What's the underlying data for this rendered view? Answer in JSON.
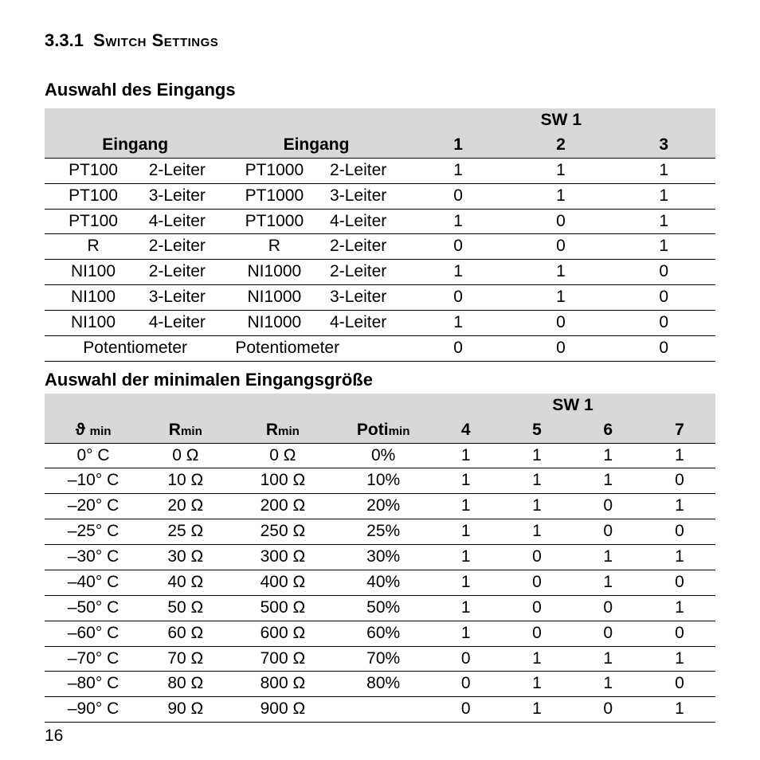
{
  "section_number": "3.3.1",
  "section_title": "Switch Settings",
  "subheading1": "Auswahl des Eingangs",
  "subheading2": "Auswahl der minimalen Eingangsgröße",
  "page_number": "16",
  "table1": {
    "sw_label": "SW 1",
    "col_headers": [
      "Eingang",
      "Eingang",
      "1",
      "2",
      "3"
    ],
    "col_widths_pct": [
      27,
      27,
      15.3,
      15.3,
      15.4
    ],
    "rows": [
      {
        "in1a": "PT100",
        "in1b": "2-Leiter",
        "in2a": "PT1000",
        "in2b": "2-Leiter",
        "s": [
          "1",
          "1",
          "1"
        ]
      },
      {
        "in1a": "PT100",
        "in1b": "3-Leiter",
        "in2a": "PT1000",
        "in2b": "3-Leiter",
        "s": [
          "0",
          "1",
          "1"
        ]
      },
      {
        "in1a": "PT100",
        "in1b": "4-Leiter",
        "in2a": "PT1000",
        "in2b": "4-Leiter",
        "s": [
          "1",
          "0",
          "1"
        ]
      },
      {
        "in1a": "R",
        "in1b": "2-Leiter",
        "in2a": "R",
        "in2b": "2-Leiter",
        "s": [
          "0",
          "0",
          "1"
        ]
      },
      {
        "in1a": "NI100",
        "in1b": "2-Leiter",
        "in2a": "NI1000",
        "in2b": "2-Leiter",
        "s": [
          "1",
          "1",
          "0"
        ]
      },
      {
        "in1a": "NI100",
        "in1b": "3-Leiter",
        "in2a": "NI1000",
        "in2b": "3-Leiter",
        "s": [
          "0",
          "1",
          "0"
        ]
      },
      {
        "in1a": "NI100",
        "in1b": "4-Leiter",
        "in2a": "NI1000",
        "in2b": "4-Leiter",
        "s": [
          "1",
          "0",
          "0"
        ]
      },
      {
        "in1a": "Potentiometer",
        "in1b": "",
        "in2a": "Potentiometer",
        "in2b": "",
        "s": [
          "0",
          "0",
          "0"
        ]
      }
    ]
  },
  "table2": {
    "sw_label": "SW 1",
    "h_theta": "ϑ",
    "h_theta_sub": "min",
    "h_R": "R",
    "h_R_sub": "min",
    "h_Poti": "Poti",
    "h_Poti_sub": "min",
    "sw_nums": [
      "4",
      "5",
      "6",
      "7"
    ],
    "col_widths_pct": [
      14.5,
      13,
      16,
      14,
      10.6,
      10.6,
      10.6,
      10.7
    ],
    "rows": [
      {
        "t": "0° C",
        "r1": "0 Ω",
        "r2": "0 Ω",
        "p": "0%",
        "s": [
          "1",
          "1",
          "1",
          "1"
        ]
      },
      {
        "t": "–10° C",
        "r1": "10 Ω",
        "r2": "100 Ω",
        "p": "10%",
        "s": [
          "1",
          "1",
          "1",
          "0"
        ]
      },
      {
        "t": "–20° C",
        "r1": "20 Ω",
        "r2": "200 Ω",
        "p": "20%",
        "s": [
          "1",
          "1",
          "0",
          "1"
        ]
      },
      {
        "t": "–25° C",
        "r1": "25 Ω",
        "r2": "250 Ω",
        "p": "25%",
        "s": [
          "1",
          "1",
          "0",
          "0"
        ]
      },
      {
        "t": "–30° C",
        "r1": "30 Ω",
        "r2": "300 Ω",
        "p": "30%",
        "s": [
          "1",
          "0",
          "1",
          "1"
        ]
      },
      {
        "t": "–40° C",
        "r1": "40 Ω",
        "r2": "400 Ω",
        "p": "40%",
        "s": [
          "1",
          "0",
          "1",
          "0"
        ]
      },
      {
        "t": "–50° C",
        "r1": "50 Ω",
        "r2": "500 Ω",
        "p": "50%",
        "s": [
          "1",
          "0",
          "0",
          "1"
        ]
      },
      {
        "t": "–60° C",
        "r1": "60 Ω",
        "r2": "600 Ω",
        "p": "60%",
        "s": [
          "1",
          "0",
          "0",
          "0"
        ]
      },
      {
        "t": "–70° C",
        "r1": "70 Ω",
        "r2": "700 Ω",
        "p": "70%",
        "s": [
          "0",
          "1",
          "1",
          "1"
        ]
      },
      {
        "t": "–80° C",
        "r1": "80 Ω",
        "r2": "800 Ω",
        "p": "80%",
        "s": [
          "0",
          "1",
          "1",
          "0"
        ]
      },
      {
        "t": "–90° C",
        "r1": "90 Ω",
        "r2": "900 Ω",
        "p": "",
        "s": [
          "0",
          "1",
          "0",
          "1"
        ]
      }
    ]
  },
  "colors": {
    "header_bg": "#d8d8d8",
    "border": "#000000",
    "text": "#000000",
    "background": "#ffffff"
  },
  "fonts": {
    "body_pt": 21,
    "heading_pt": 22,
    "family": "Helvetica"
  }
}
